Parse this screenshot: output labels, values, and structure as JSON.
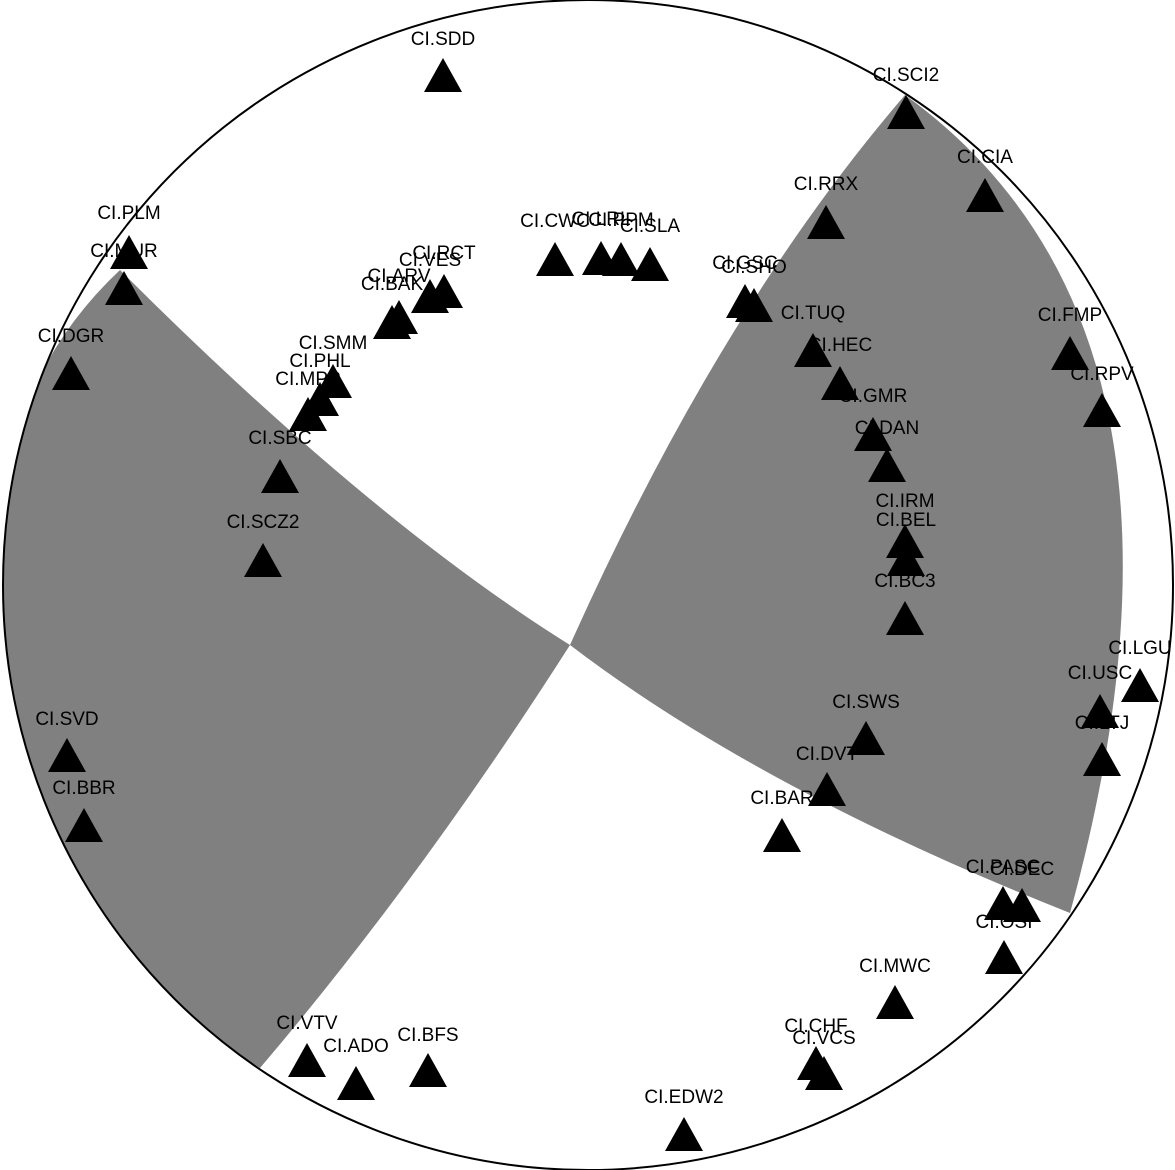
{
  "diagram": {
    "type": "focal-mechanism-beachball",
    "compressional_fill": "#808080",
    "dilatational_fill": "#ffffff",
    "outline_color": "#000000",
    "station_marker": "triangle-icon",
    "station_color": "#000000"
  },
  "stations": [
    {
      "label": "CI.SDD"
    },
    {
      "label": "CI.SCI2"
    },
    {
      "label": "CI.CIA"
    },
    {
      "label": "CI.RRX"
    },
    {
      "label": "CI.PLM"
    },
    {
      "label": "CI.MUR"
    },
    {
      "label": "CI.CWC"
    },
    {
      "label": "CI.LRL"
    },
    {
      "label": "CI.PPM"
    },
    {
      "label": "CI.SLA"
    },
    {
      "label": "CI.RCT"
    },
    {
      "label": "CI.VES"
    },
    {
      "label": "CI.ARV"
    },
    {
      "label": "CI.BAK"
    },
    {
      "label": "CI.GSC"
    },
    {
      "label": "CI.SHO"
    },
    {
      "label": "CI.TUQ"
    },
    {
      "label": "CI.FMP"
    },
    {
      "label": "CI.DGR"
    },
    {
      "label": "CI.SMM"
    },
    {
      "label": "CI.PHL"
    },
    {
      "label": "CI.MPP"
    },
    {
      "label": "CI.HEC"
    },
    {
      "label": "CI.RPV"
    },
    {
      "label": "CI.GMR"
    },
    {
      "label": "CI.SBC"
    },
    {
      "label": "CI.DAN"
    },
    {
      "label": "CI.IRM"
    },
    {
      "label": "CI.BEL"
    },
    {
      "label": "CI.SCZ2"
    },
    {
      "label": "CI.BC3"
    },
    {
      "label": "CI.LGU"
    },
    {
      "label": "CI.USC"
    },
    {
      "label": "CI.SVD"
    },
    {
      "label": "CI.SWS"
    },
    {
      "label": "CI.LTJ"
    },
    {
      "label": "CI.DVT"
    },
    {
      "label": "CI.BBR"
    },
    {
      "label": "CI.BAR"
    },
    {
      "label": "CI.PASC"
    },
    {
      "label": "CI.DEC"
    },
    {
      "label": "CI.OSI"
    },
    {
      "label": "CI.MWC"
    },
    {
      "label": "CI.VTV"
    },
    {
      "label": "CI.ADO"
    },
    {
      "label": "CI.BFS"
    },
    {
      "label": "CI.CHF"
    },
    {
      "label": "CI.VCS"
    },
    {
      "label": "CI.EDW2"
    }
  ]
}
